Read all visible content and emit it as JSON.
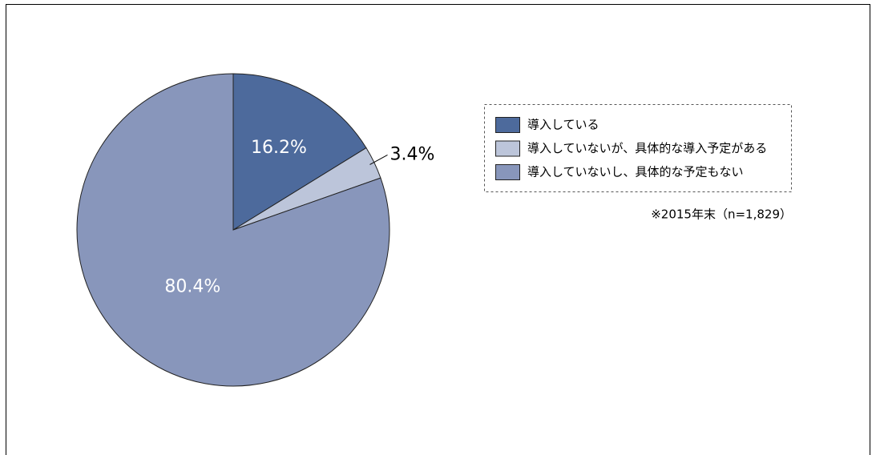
{
  "chart_data": {
    "type": "pie",
    "categories": [
      "導入している",
      "導入していないが、具体的な導入予定がある",
      "導入していないし、具体的な予定もない"
    ],
    "values": [
      16.2,
      3.4,
      80.4
    ],
    "value_labels": [
      "16.2%",
      "3.4%",
      "80.4%"
    ],
    "colors": [
      "#4d6a9c",
      "#bcc5da",
      "#8896bb"
    ],
    "annotation": "※2015年末（n=1,829）",
    "legend": "right"
  }
}
